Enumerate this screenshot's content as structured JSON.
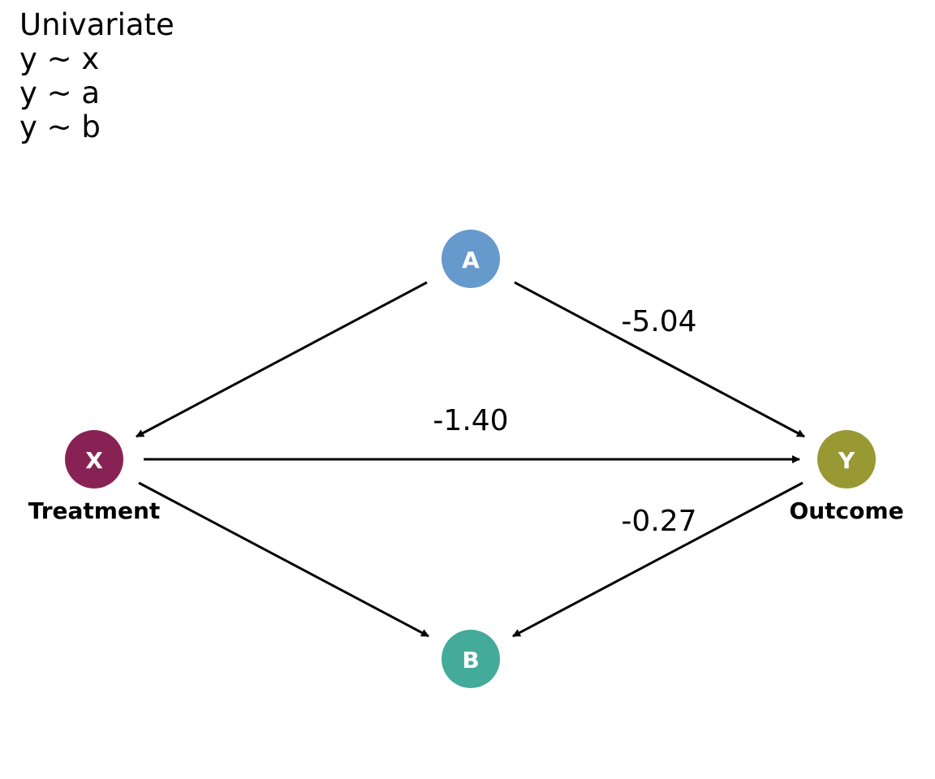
{
  "header": {
    "lines": [
      "Univariate",
      "y ~ x",
      "y ~ a",
      "y ~ b"
    ]
  },
  "nodes": {
    "x": {
      "label": "X",
      "caption": "Treatment",
      "color": "#882255"
    },
    "y": {
      "label": "Y",
      "caption": "Outcome",
      "color": "#999933"
    },
    "a": {
      "label": "A",
      "color": "#6699CC"
    },
    "b": {
      "label": "B",
      "color": "#44AA99"
    }
  },
  "edges": {
    "a_to_x": {
      "from": "A",
      "to": "X"
    },
    "a_to_y": {
      "from": "A",
      "to": "Y",
      "coefficient": "-5.04"
    },
    "x_to_y": {
      "from": "X",
      "to": "Y",
      "coefficient": "-1.40"
    },
    "x_to_b": {
      "from": "X",
      "to": "B"
    },
    "y_to_b": {
      "from": "Y",
      "to": "B",
      "coefficient": "-0.27"
    }
  }
}
